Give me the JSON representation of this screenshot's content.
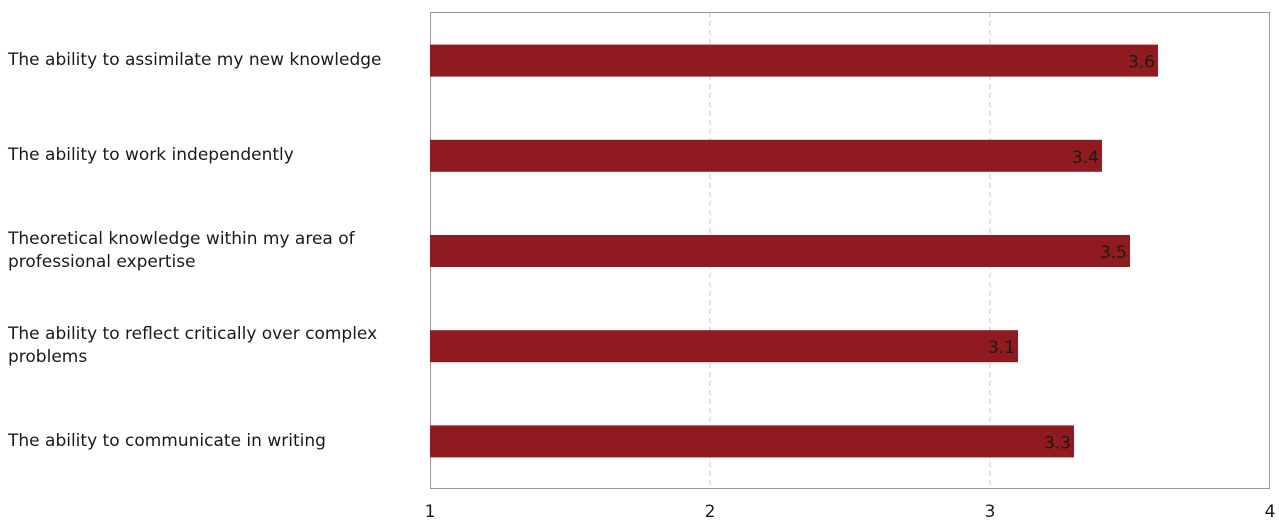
{
  "chart_data": {
    "type": "bar",
    "orientation": "horizontal",
    "categories": [
      "The ability to assimilate my new knowledge",
      "The ability to work independently",
      "Theoretical knowledge within my area of professional expertise",
      "The ability to reflect critically over complex problems",
      "The ability to communicate in writing"
    ],
    "values": [
      3.6,
      3.4,
      3.5,
      3.1,
      3.3
    ],
    "data_labels": [
      "3.6",
      "3.4",
      "3.5",
      "3.1",
      "3.3"
    ],
    "xlim": [
      1,
      4
    ],
    "x_ticks": [
      "1",
      "2",
      "3",
      "4"
    ],
    "grid": "vertical dashed",
    "bar_color": "#8f1b20",
    "title": "",
    "xlabel": "",
    "ylabel": ""
  }
}
